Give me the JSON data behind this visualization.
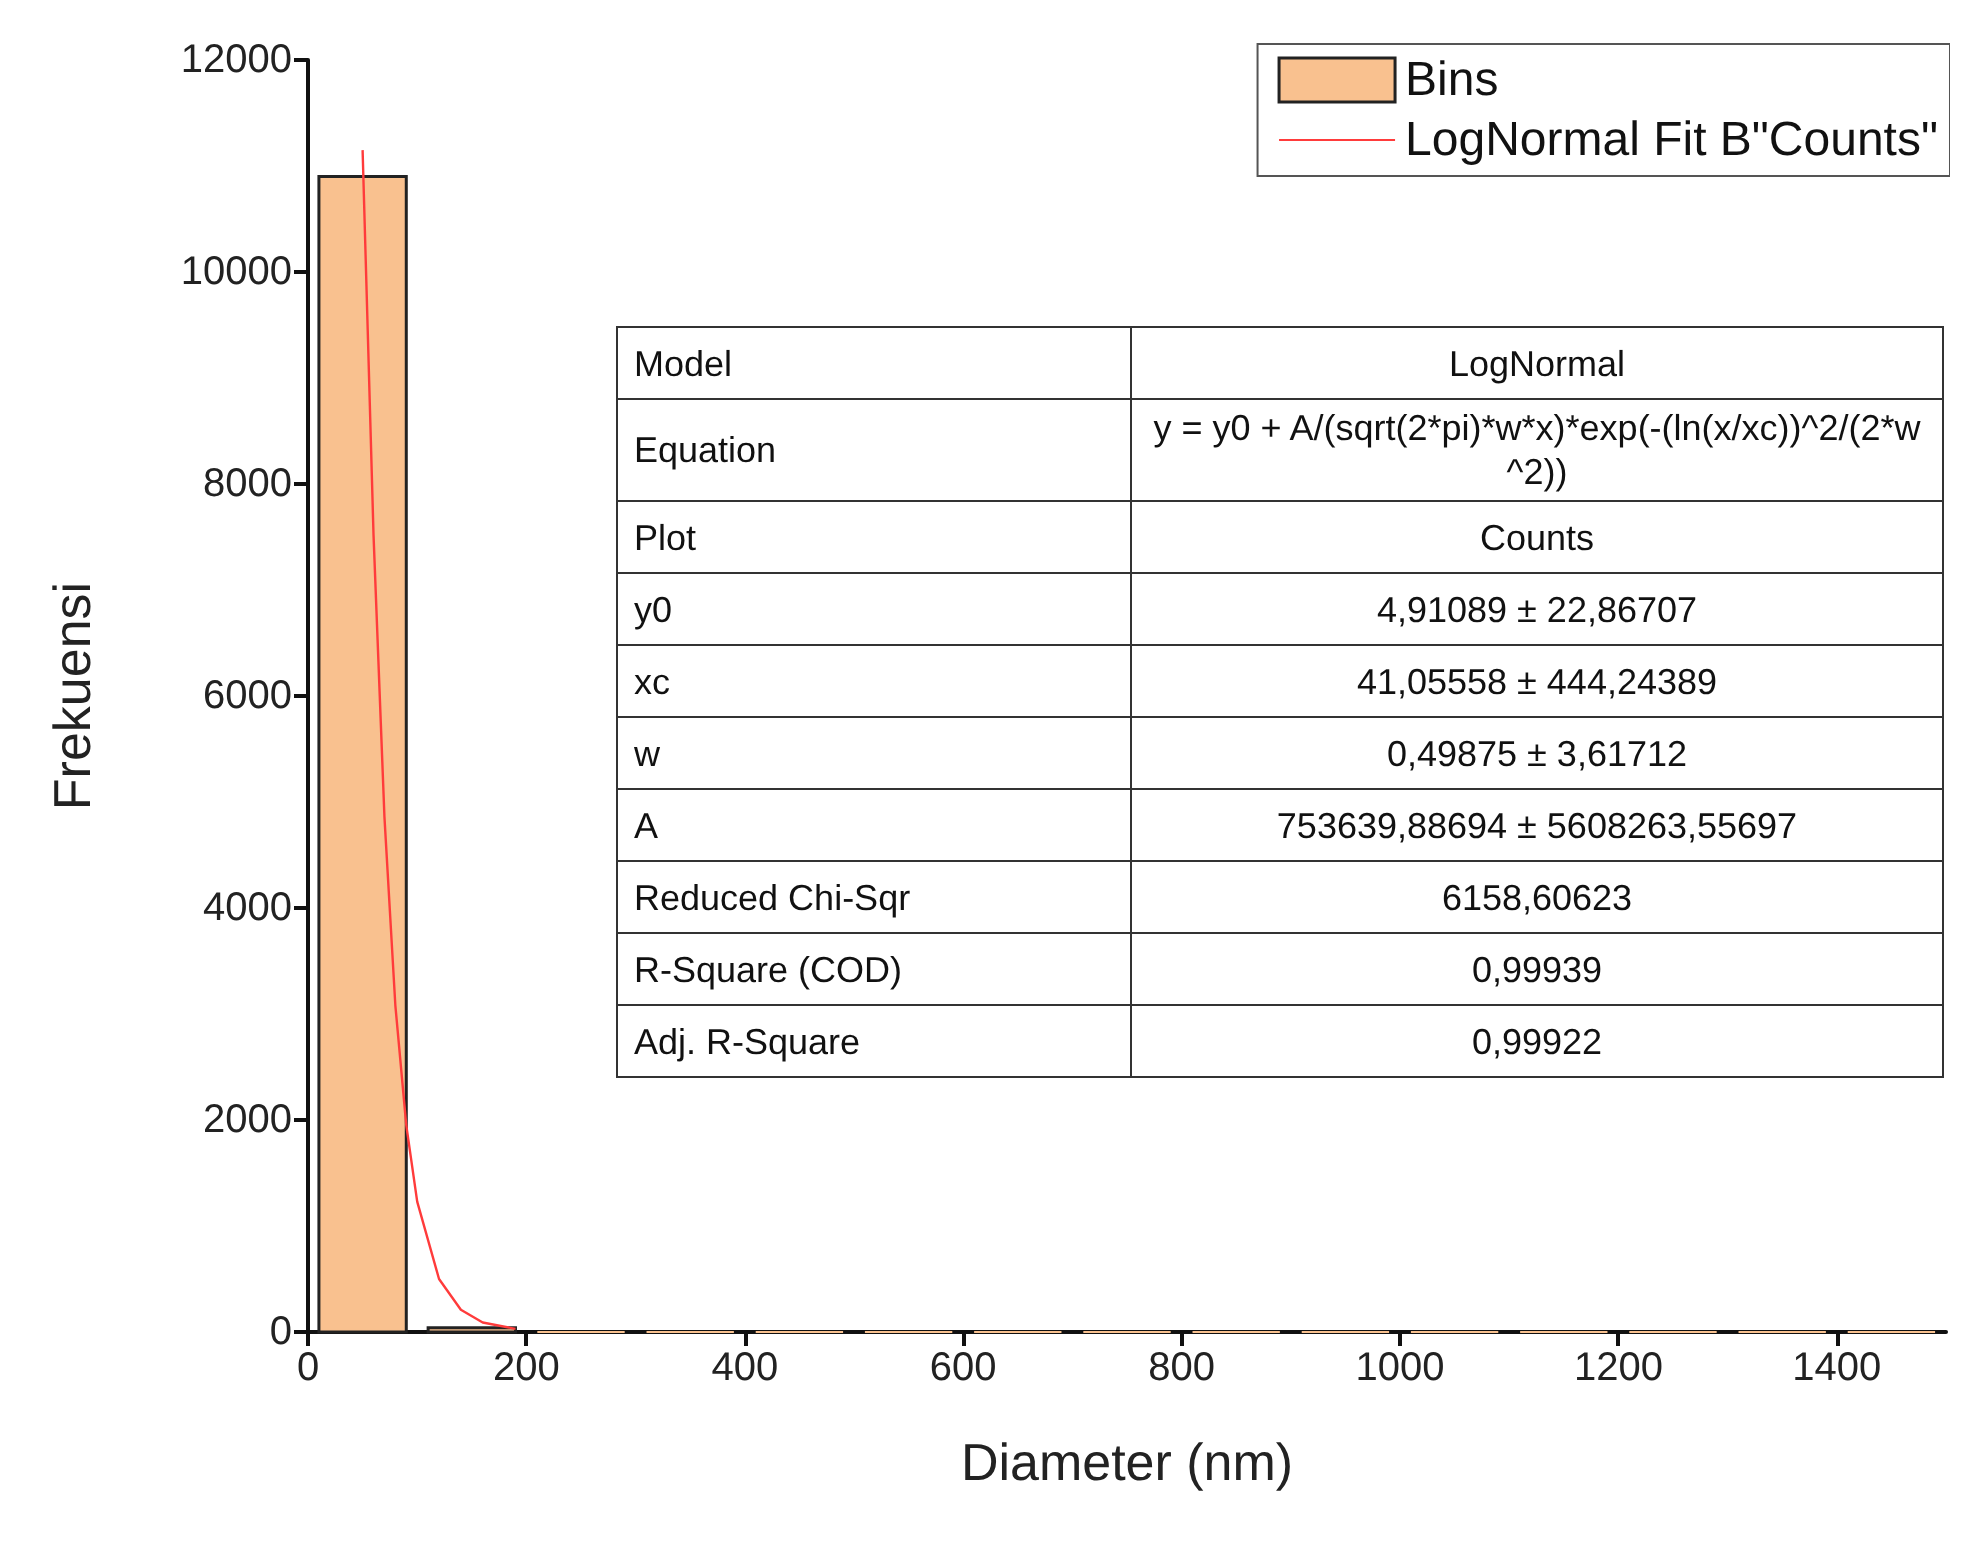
{
  "chart_data": {
    "type": "histogram",
    "xlabel": "Diameter (nm)",
    "ylabel": "Frekuensi",
    "bins": [
      0,
      100,
      200,
      300,
      400,
      500,
      600,
      700,
      800,
      900,
      1000,
      1100,
      1200,
      1300,
      1400,
      1500
    ],
    "series": [
      {
        "name": "Bins",
        "color": "#f9c18f",
        "values": [
          10900,
          40,
          0,
          0,
          0,
          0,
          0,
          0,
          0,
          0,
          0,
          0,
          0,
          0,
          0
        ]
      },
      {
        "type": "line",
        "name": "LogNormal Fit B\"Counts\"",
        "color": "#ff3b3b",
        "x": [
          50,
          60,
          70,
          80,
          90,
          100,
          120,
          140,
          160,
          190
        ],
        "values": [
          11150,
          7520,
          4860,
          3080,
          1950,
          1230,
          500,
          210,
          90,
          30
        ]
      }
    ],
    "xlim": [
      0,
      1500
    ],
    "xticks": [
      0,
      200,
      400,
      600,
      800,
      1000,
      1200,
      1400
    ],
    "ylim": [
      0,
      12000
    ],
    "yticks": [
      0,
      2000,
      4000,
      6000,
      8000,
      10000,
      12000
    ],
    "grid": false,
    "legend": "top right",
    "marker": "none",
    "line_style": "solid",
    "annotations": [
      "Model",
      "LogNormal",
      "Equation",
      "y = y0 + A/(sqrt(2*pi)*w*x)*exp(-(ln(x/xc))^2/(2*w^2))",
      "Plot",
      "Counts",
      "y0",
      "4,91089 ± 22,86707",
      "xc",
      "41,05558 ± 444,24389",
      "w",
      "0,49875 ± 3,61712",
      "A",
      "753639,88694 ± 5608263,55697",
      "Reduced Chi-Sqr",
      "6158,60623",
      "R-Square (COD)",
      "0,99939",
      "Adj. R-Square",
      "0,99922"
    ]
  }
}
